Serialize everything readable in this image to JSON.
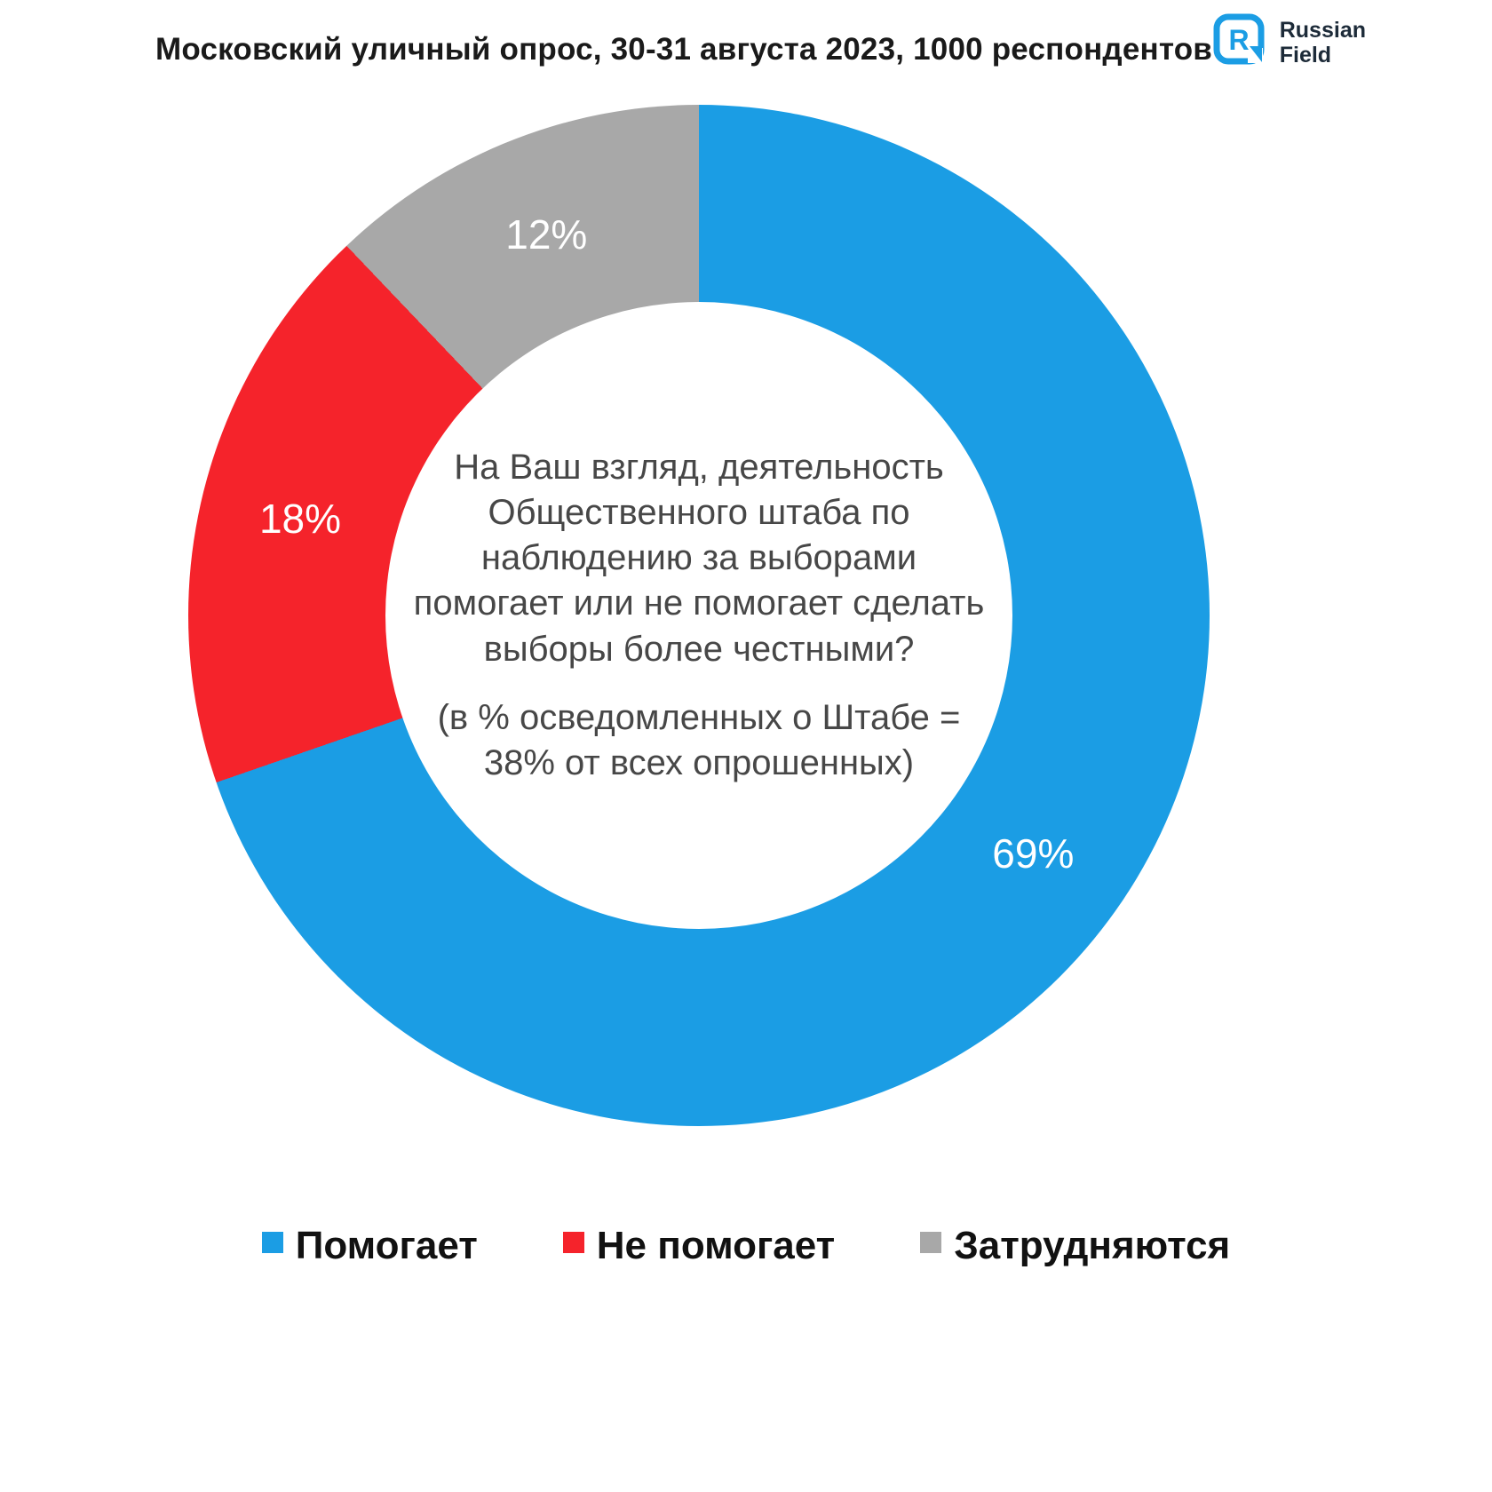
{
  "title": "Московский уличный опрос, 30-31 августа 2023, 1000 респондентов",
  "logo": {
    "line1": "Russian",
    "line2": "Field"
  },
  "chart_data": {
    "type": "pie",
    "donut": true,
    "direction": "clockwise",
    "start_angle_deg": 0,
    "legend_position": "bottom",
    "center_text": {
      "question": "На Ваш взгляд, деятельность Общественного штаба по наблюдению за выборами помогает или не помогает сделать выборы более честными?",
      "note": "(в % осведомленных о Штабе = 38% от всех опрошенных)"
    },
    "segments": [
      {
        "label": "Помогает",
        "value": 69,
        "color": "#1B9DE4",
        "text_color": "#ffffff"
      },
      {
        "label": "Не помогает",
        "value": 18,
        "color": "#F5232B",
        "text_color": "#ffffff"
      },
      {
        "label": "Затрудняются",
        "value": 12,
        "color": "#A8A8A8",
        "text_color": "#ffffff"
      }
    ],
    "brand_color": "#1B9DE4"
  }
}
